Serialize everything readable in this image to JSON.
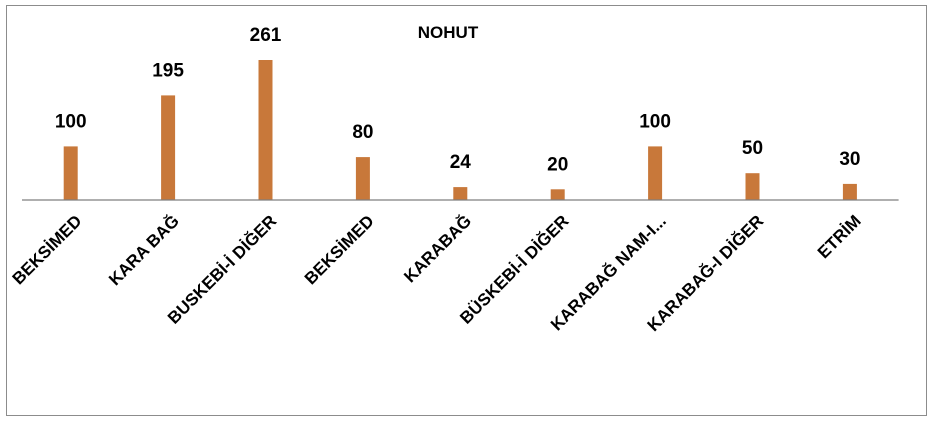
{
  "chart_data": {
    "type": "bar",
    "title": "NOHUT",
    "categories": [
      "BEKSİMED",
      "KARA BAĞ",
      "BUSKEBİ-İ DİĞER",
      "BEKSİMED",
      "KARABAĞ",
      "BÜSKEBİ-İ DİĞER",
      "KARABAĞ NAM-I...",
      "KARABAĞ-I DİĞER",
      "ETRİM"
    ],
    "values": [
      100,
      195,
      261,
      80,
      24,
      20,
      100,
      50,
      30
    ],
    "data_labels": [
      "100",
      "195",
      "261",
      "80",
      "24",
      "20",
      "100",
      "50",
      "30"
    ],
    "ylim": [
      0,
      261
    ],
    "grid": false,
    "legend": "none",
    "colors": {
      "bar": "#C8783A",
      "axis": "#7f7f7f",
      "border": "#8c8c8c"
    }
  }
}
